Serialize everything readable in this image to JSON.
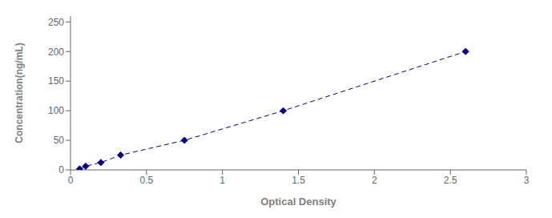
{
  "chart_data": {
    "type": "line",
    "x": [
      0.06,
      0.1,
      0.2,
      0.33,
      0.75,
      1.4,
      2.6
    ],
    "values": [
      1.56,
      6.25,
      12.5,
      25,
      50,
      100,
      200
    ],
    "color": "#00008B",
    "marker": "diamond",
    "line_style": "dashed",
    "xlabel": "Optical Density",
    "ylabel": "Concentration(ng/mL)",
    "xlim": [
      0,
      3
    ],
    "ylim": [
      0,
      260
    ],
    "xticks": [
      0,
      0.5,
      1,
      1.5,
      2,
      2.5,
      3
    ],
    "yticks": [
      0,
      50,
      100,
      150,
      200,
      250
    ],
    "grid": false
  }
}
